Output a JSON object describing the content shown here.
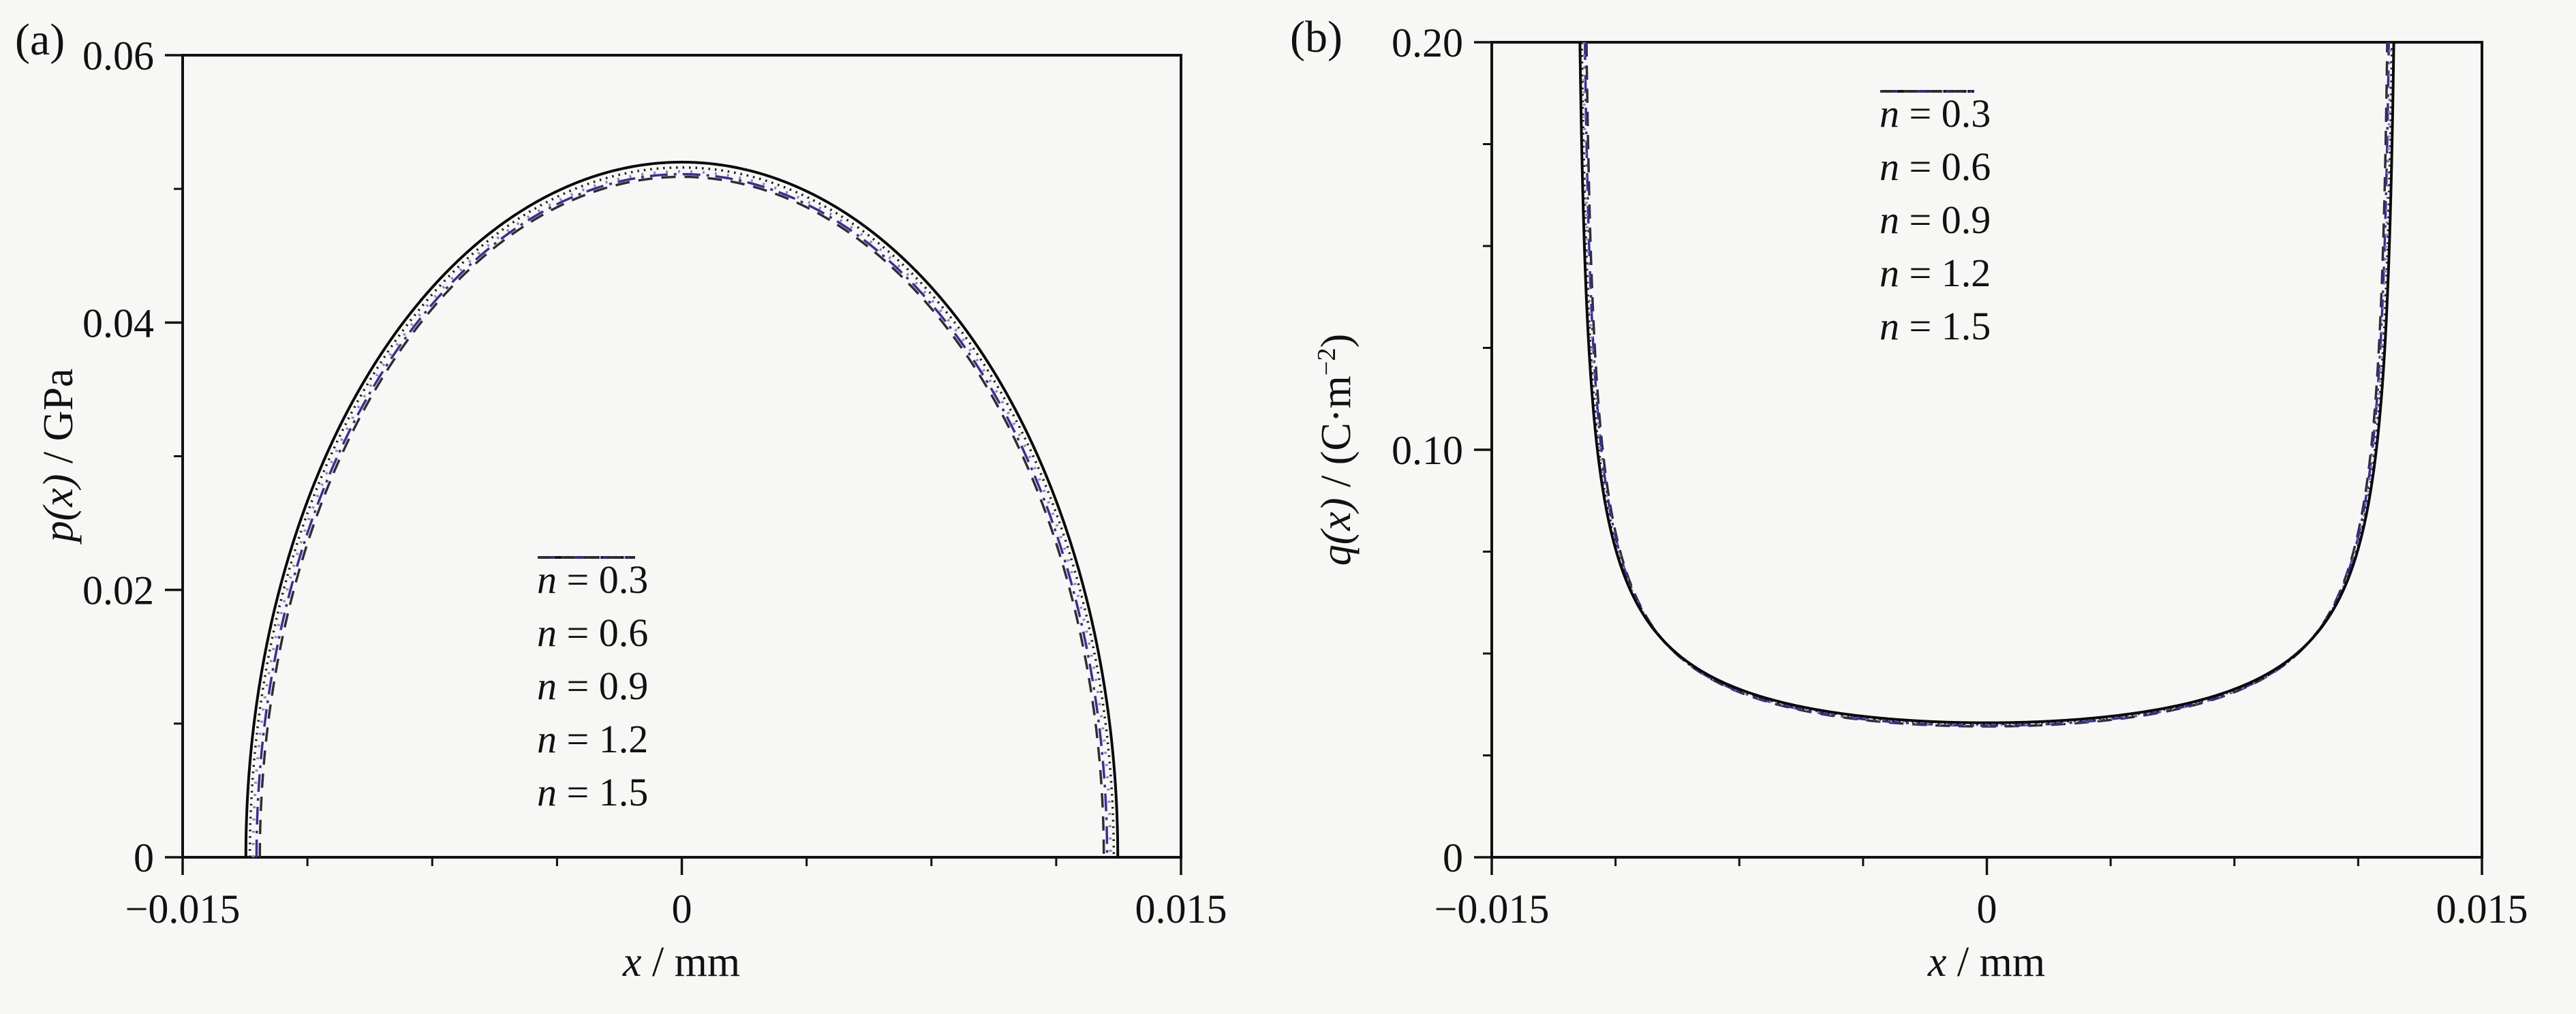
{
  "figure": {
    "background": "#f7f7f6",
    "ink": "#111111",
    "description": "Two-panel line figure: (a) contact pressure distribution p(x), (b) surface charge distribution q(x), each for five values of gradient index n; all five curves nearly coincide in each panel."
  },
  "chart_data": [
    {
      "panel": "a",
      "tag": "(a)",
      "type": "line",
      "x_title": {
        "var": "x",
        "rest": " / mm"
      },
      "y_title": {
        "var": "p(x)",
        "rest": " / GPa",
        "sup": "",
        "rest2": ""
      },
      "x_axis": {
        "range": [
          -0.015,
          0.015
        ],
        "major_ticks": [
          -0.015,
          0,
          0.015
        ],
        "major_tick_labels": [
          "−0.015",
          "0",
          "0.015"
        ],
        "minor_ticks": [
          -0.01125,
          -0.0075,
          -0.00375,
          0.00375,
          0.0075,
          0.01125
        ],
        "grid": false
      },
      "y_axis": {
        "range": [
          0,
          0.06
        ],
        "major_ticks": [
          0,
          0.02,
          0.04,
          0.06
        ],
        "major_tick_labels": [
          "0",
          "0.02",
          "0.04",
          "0.06"
        ],
        "minor_ticks": [
          0.01,
          0.03,
          0.05
        ],
        "grid": false
      },
      "curve_model": "p(x) = peak·sqrt(1−(x/a)²)  — semi-elliptical (Hertz-type) contact pressure; peak ≈ 0.052 GPa at x = 0, contact half-width a ≈ 0.013 mm; the five curves for different n nearly coincide",
      "legend_position": "inside lower-center-right",
      "series": [
        {
          "label": {
            "var": "n",
            "rest": " = 0.3"
          },
          "n": 0.3,
          "line_style": "solid",
          "color": "#0a0a0a",
          "a_mm": 0.0131,
          "peak": 0.052
        },
        {
          "label": {
            "var": "n",
            "rest": " = 0.6"
          },
          "n": 0.6,
          "line_style": "dot",
          "color": "#1c1c1c",
          "a_mm": 0.01298,
          "peak": 0.0516
        },
        {
          "label": {
            "var": "n",
            "rest": " = 0.9"
          },
          "n": 0.9,
          "line_style": "sparse-dot",
          "color": "#8f89b4",
          "a_mm": 0.01288,
          "peak": 0.0513
        },
        {
          "label": {
            "var": "n",
            "rest": " = 1.2"
          },
          "n": 1.2,
          "line_style": "dash-dot",
          "color": "#34309a",
          "a_mm": 0.01278,
          "peak": 0.0511
        },
        {
          "label": {
            "var": "n",
            "rest": " = 1.5"
          },
          "n": 1.5,
          "line_style": "dash",
          "color": "#2e2e2e",
          "a_mm": 0.01268,
          "peak": 0.0509
        }
      ]
    },
    {
      "panel": "b",
      "tag": "(b)",
      "type": "line",
      "x_title": {
        "var": "x",
        "rest": " / mm"
      },
      "y_title": {
        "var": "q(x)",
        "rest": " / (C·m",
        "sup": "−2",
        "rest2": ")"
      },
      "x_axis": {
        "range": [
          -0.015,
          0.015
        ],
        "major_ticks": [
          -0.015,
          0,
          0.015
        ],
        "major_tick_labels": [
          "−0.015",
          "0",
          "0.015"
        ],
        "minor_ticks": [
          -0.01125,
          -0.0075,
          -0.00375,
          0.00375,
          0.0075,
          0.01125
        ],
        "grid": false
      },
      "y_axis": {
        "range": [
          0,
          0.2
        ],
        "major_ticks": [
          0,
          0.1,
          0.2
        ],
        "major_tick_labels": [
          "0",
          "0.10",
          "0.20"
        ],
        "minor_ticks": [
          0.025,
          0.05,
          0.075,
          0.125,
          0.15,
          0.175
        ],
        "grid": false
      },
      "curve_model": "q(x) = plateau/sqrt(1−(x/a)²), clipped at top of axis (0.20) — flat plateau ≈ 0.033 C·m⁻² in the middle with steep edge singularities near x ≈ ±0.0123 mm; the five curves for different n nearly coincide",
      "legend_position": "inside upper-center",
      "series": [
        {
          "label": {
            "var": "n",
            "rest": " = 0.3"
          },
          "n": 0.3,
          "line_style": "solid",
          "color": "#0a0a0a",
          "a_mm": 0.0125,
          "plateau": 0.033
        },
        {
          "label": {
            "var": "n",
            "rest": " = 0.6"
          },
          "n": 0.6,
          "line_style": "dot",
          "color": "#1c1c1c",
          "a_mm": 0.01244,
          "plateau": 0.0327
        },
        {
          "label": {
            "var": "n",
            "rest": " = 0.9"
          },
          "n": 0.9,
          "line_style": "sparse-dot",
          "color": "#8f89b4",
          "a_mm": 0.01239,
          "plateau": 0.0325
        },
        {
          "label": {
            "var": "n",
            "rest": " = 1.2"
          },
          "n": 1.2,
          "line_style": "dash-dot",
          "color": "#34309a",
          "a_mm": 0.01234,
          "plateau": 0.0323
        },
        {
          "label": {
            "var": "n",
            "rest": " = 1.5"
          },
          "n": 1.5,
          "line_style": "dash",
          "color": "#2e2e2e",
          "a_mm": 0.01229,
          "plateau": 0.0321
        }
      ]
    }
  ]
}
